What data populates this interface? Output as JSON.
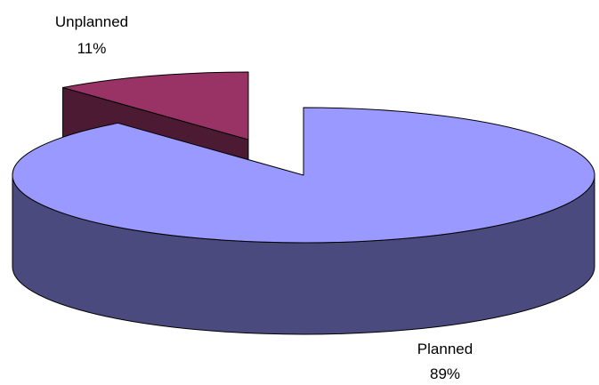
{
  "chart_data": {
    "type": "pie",
    "style": "3d-exploded",
    "title": "",
    "slices": [
      {
        "name": "Planned",
        "value": 89,
        "percent_label": "89%",
        "color": "#9999FF",
        "side_color": "#4A4A7E"
      },
      {
        "name": "Unplanned",
        "value": 11,
        "percent_label": "11%",
        "color": "#993366",
        "side_color": "#4D1A33"
      }
    ],
    "legend": "none"
  }
}
